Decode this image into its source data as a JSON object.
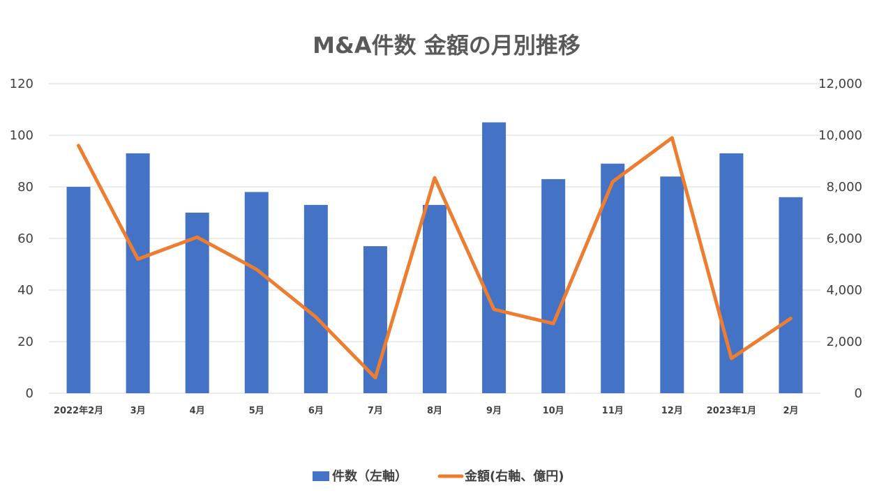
{
  "chart_data": {
    "type": "bar",
    "title": "M&A件数 金額の月別推移",
    "categories": [
      "2022年2月",
      "3月",
      "4月",
      "5月",
      "6月",
      "7月",
      "8月",
      "9月",
      "10月",
      "11月",
      "12月",
      "2023年1月",
      "2月"
    ],
    "series": [
      {
        "name": "件数（左軸）",
        "type": "bar",
        "axis": "left",
        "color": "#4472C4",
        "values": [
          80,
          93,
          70,
          78,
          73,
          57,
          73,
          105,
          83,
          89,
          84,
          93,
          76
        ]
      },
      {
        "name": "金額(右軸、億円)",
        "type": "line",
        "axis": "right",
        "color": "#ED7D31",
        "values": [
          9600,
          5200,
          6050,
          4800,
          2950,
          600,
          8350,
          3250,
          2700,
          8200,
          9900,
          1350,
          2900
        ]
      }
    ],
    "left_axis": {
      "min": 0,
      "max": 120,
      "ticks": [
        "0",
        "20",
        "40",
        "60",
        "80",
        "100",
        "120"
      ]
    },
    "right_axis": {
      "min": 0,
      "max": 12000,
      "ticks": [
        "0",
        "2,000",
        "4,000",
        "6,000",
        "8,000",
        "10,000",
        "12,000"
      ]
    },
    "grid": true,
    "legend_position": "bottom-center"
  }
}
